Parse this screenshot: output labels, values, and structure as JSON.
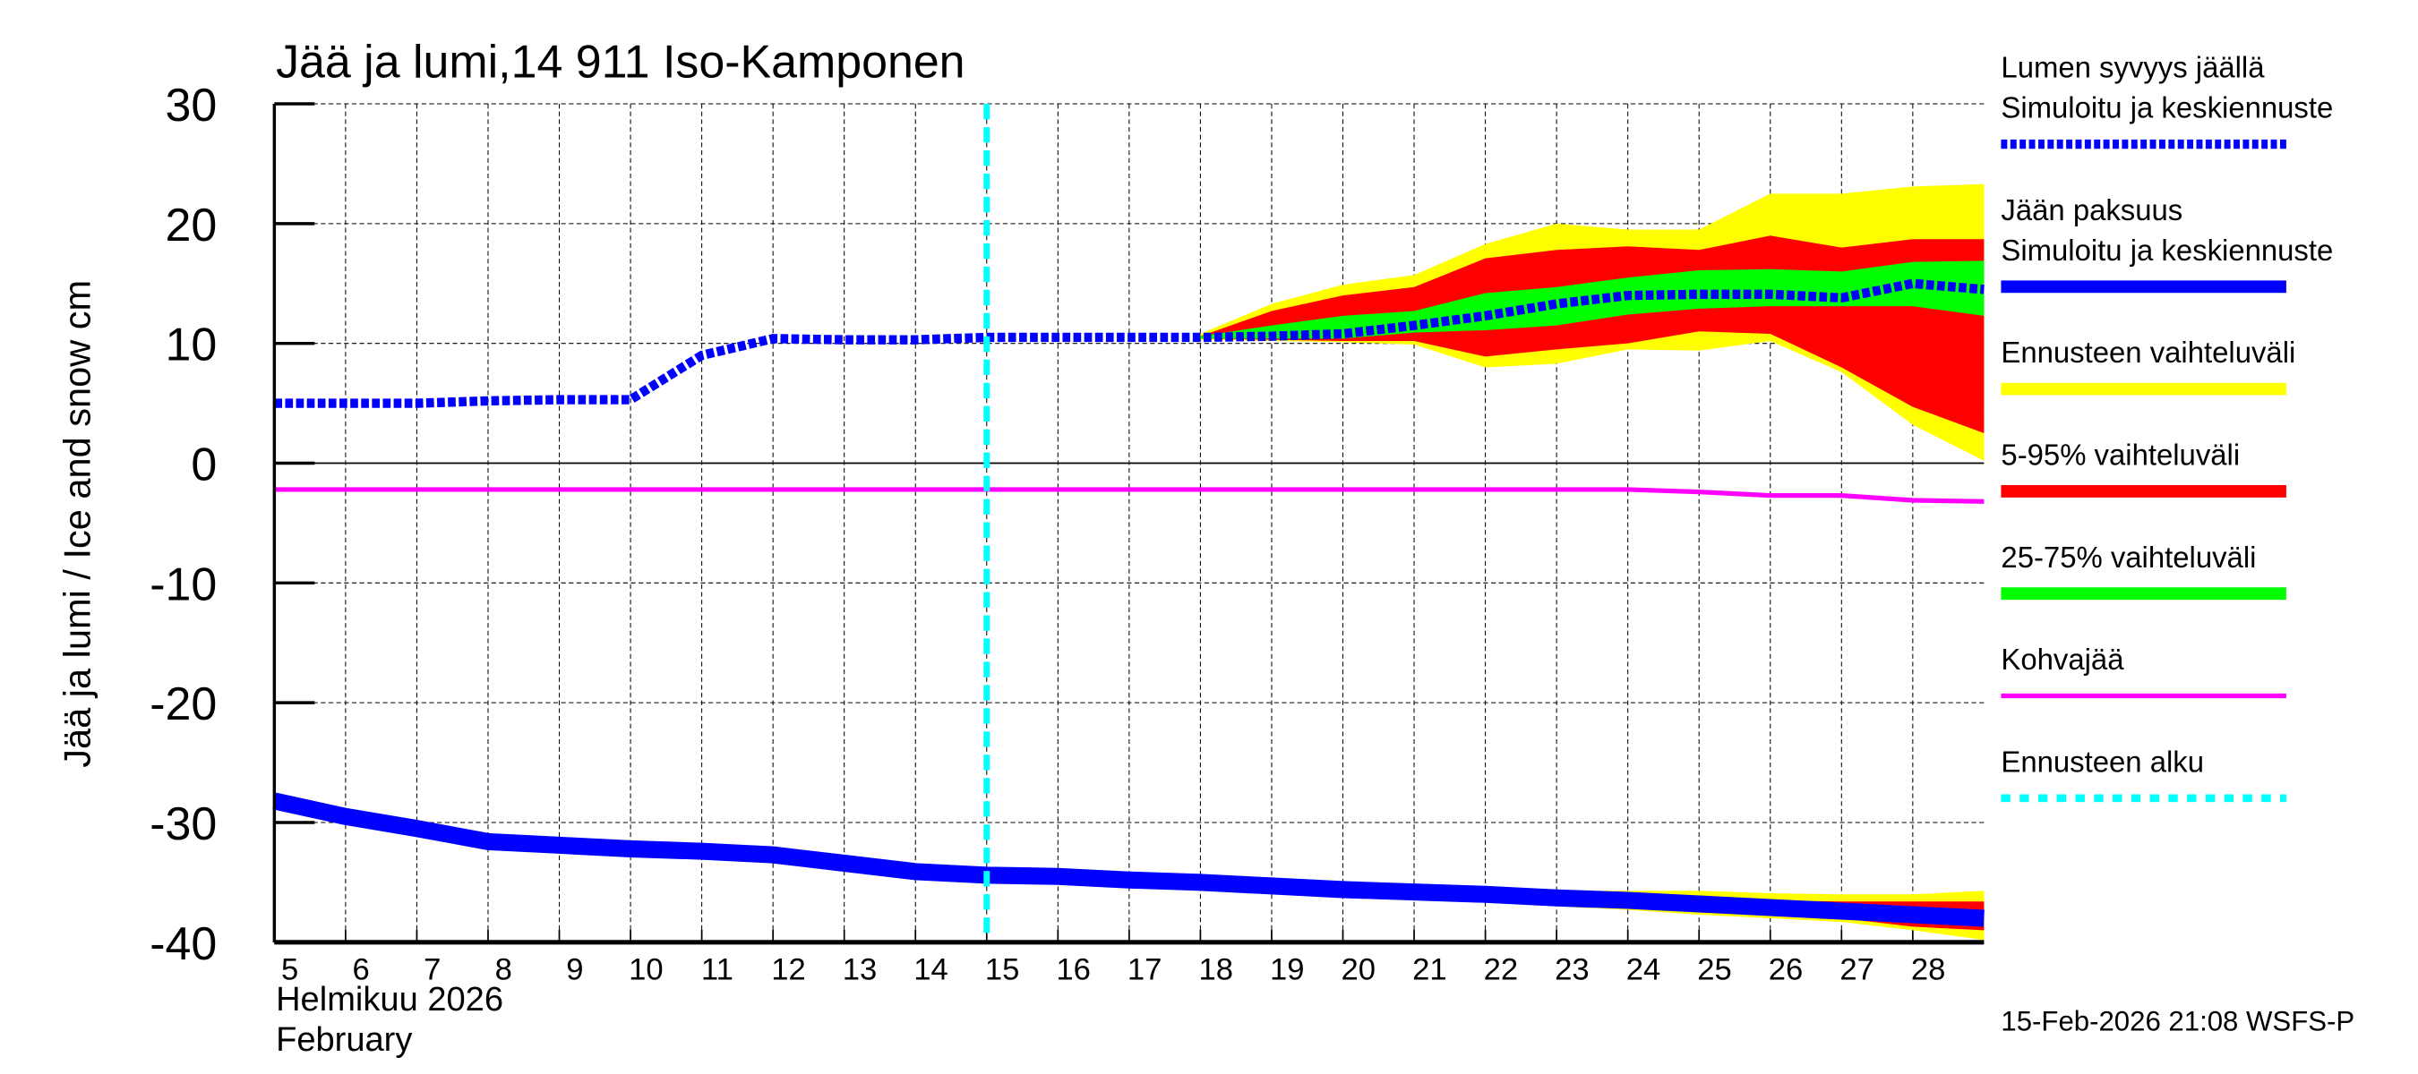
{
  "chart_data": {
    "type": "line",
    "title": "Jää ja lumi,14 911 Iso-Kamponen",
    "ylabel": "Jää ja lumi / Ice and snow    cm",
    "xlabel_lines": [
      "Helmikuu  2026",
      "February"
    ],
    "footer": "15-Feb-2026 21:08 WSFS-P",
    "ylim": [
      -40,
      30
    ],
    "xlim": [
      5,
      29
    ],
    "yticks": [
      30,
      20,
      10,
      0,
      -10,
      -20,
      -30,
      -40
    ],
    "xticks": [
      5,
      6,
      7,
      8,
      9,
      10,
      11,
      12,
      13,
      14,
      15,
      16,
      17,
      18,
      19,
      20,
      21,
      22,
      23,
      24,
      25,
      26,
      27,
      28
    ],
    "grid": true,
    "legend_position": "right",
    "forecast_start": 15,
    "x": [
      5,
      6,
      7,
      8,
      9,
      10,
      11,
      12,
      13,
      14,
      15,
      16,
      17,
      18,
      19,
      20,
      21,
      22,
      23,
      24,
      25,
      26,
      27,
      28,
      29
    ],
    "series": [
      {
        "name": "Lumen syvyys jäällä Simuloitu ja keskiennuste",
        "color": "#0000ff",
        "style": "dashed",
        "values": [
          5,
          5,
          5,
          5.2,
          5.3,
          5.3,
          9,
          10.4,
          10.3,
          10.3,
          10.5,
          10.5,
          10.5,
          10.5,
          10.6,
          10.8,
          11.5,
          12.3,
          13.3,
          14,
          14.1,
          14.1,
          13.8,
          15,
          14.5
        ]
      },
      {
        "name": "Jään paksuus Simuloitu ja keskiennuste",
        "color": "#0000ff",
        "style": "thick",
        "values": [
          -28.2,
          -29.5,
          -30.5,
          -31.6,
          -31.9,
          -32.2,
          -32.4,
          -32.7,
          -33.4,
          -34.1,
          -34.4,
          -34.5,
          -34.8,
          -35,
          -35.3,
          -35.6,
          -35.8,
          -36,
          -36.3,
          -36.5,
          -36.8,
          -37.1,
          -37.4,
          -37.7,
          -38
        ]
      },
      {
        "name": "Kohvajää",
        "color": "#ff00ff",
        "style": "solid",
        "values": [
          -2.2,
          -2.2,
          -2.2,
          -2.2,
          -2.2,
          -2.2,
          -2.2,
          -2.2,
          -2.2,
          -2.2,
          -2.2,
          -2.2,
          -2.2,
          -2.2,
          -2.2,
          -2.2,
          -2.2,
          -2.2,
          -2.2,
          -2.2,
          -2.4,
          -2.7,
          -2.7,
          -3.1,
          -3.2
        ]
      }
    ],
    "bands_x": [
      18,
      19,
      20,
      21,
      22,
      23,
      24,
      25,
      26,
      27,
      28,
      29
    ],
    "bands": [
      {
        "name": "Ennusteen vaihteluväli",
        "color": "#ffff00",
        "snow_upper": [
          10.8,
          13.3,
          14.9,
          15.7,
          18.3,
          20,
          19.5,
          19.5,
          22.5,
          22.5,
          23.1,
          23.3
        ],
        "snow_lower": [
          10.3,
          10.2,
          10.1,
          9.9,
          8,
          8.3,
          9.5,
          9.4,
          10.2,
          7.6,
          3.2,
          0.2
        ],
        "ice_upper": [
          -35,
          -35.3,
          -35.5,
          -35.6,
          -35.7,
          -35.7,
          -35.7,
          -35.7,
          -35.9,
          -36,
          -36,
          -35.7
        ],
        "ice_lower": [
          -35,
          -35.3,
          -35.7,
          -36,
          -36.3,
          -37,
          -37.3,
          -37.7,
          -38,
          -38.3,
          -39,
          -39.8
        ]
      },
      {
        "name": "5-95% vaihteluväli",
        "color": "#ff0000",
        "snow_upper": [
          10.6,
          12.7,
          14,
          14.7,
          17.1,
          17.8,
          18.1,
          17.8,
          19,
          18,
          18.7,
          18.7
        ],
        "snow_lower": [
          10.4,
          10.3,
          10.2,
          10.2,
          8.9,
          9.5,
          10,
          11,
          10.8,
          8,
          4.7,
          2.5
        ],
        "ice_upper": [
          -35,
          -35.3,
          -35.6,
          -35.7,
          -35.9,
          -36,
          -36.1,
          -36.3,
          -36.5,
          -36.6,
          -36.6,
          -36.6
        ],
        "ice_lower": [
          -35,
          -35.3,
          -35.7,
          -35.9,
          -36.2,
          -36.8,
          -37.1,
          -37.4,
          -37.7,
          -38,
          -38.7,
          -39
        ]
      },
      {
        "name": "25-75% vaihteluväli",
        "color": "#00ff00",
        "snow_upper": [
          10.6,
          11.5,
          12.3,
          12.7,
          14.2,
          14.7,
          15.5,
          16.1,
          16.2,
          16,
          16.8,
          16.9
        ],
        "snow_lower": [
          10.4,
          10.4,
          10.4,
          10.9,
          11.1,
          11.5,
          12.4,
          12.9,
          13.1,
          13.1,
          13.1,
          12.3
        ],
        "ice_upper": [
          -35,
          -35.3,
          -35.6,
          -35.8,
          -36,
          -36.3,
          -36.5,
          -36.8,
          -37.1,
          -37.4,
          -37.7,
          -38
        ],
        "ice_lower": [
          -35,
          -35.3,
          -35.6,
          -35.8,
          -36,
          -36.3,
          -36.5,
          -36.8,
          -37.1,
          -37.4,
          -37.7,
          -38
        ]
      }
    ],
    "legend": [
      {
        "lines": [
          "Lumen syvyys jäällä",
          "Simuloitu ja keskiennuste"
        ],
        "color": "#0000ff",
        "style": "dashed"
      },
      {
        "lines": [
          "Jään paksuus",
          "Simuloitu ja keskiennuste"
        ],
        "color": "#0000ff",
        "style": "thick"
      },
      {
        "lines": [
          "Ennusteen vaihteluväli"
        ],
        "color": "#ffff00",
        "style": "band"
      },
      {
        "lines": [
          "5-95% vaihteluväli"
        ],
        "color": "#ff0000",
        "style": "band"
      },
      {
        "lines": [
          "25-75% vaihteluväli"
        ],
        "color": "#00ff00",
        "style": "band"
      },
      {
        "lines": [
          "Kohvajää"
        ],
        "color": "#ff00ff",
        "style": "solid"
      },
      {
        "lines": [
          "Ennusteen alku"
        ],
        "color": "#00ffff",
        "style": "dotted"
      }
    ]
  }
}
